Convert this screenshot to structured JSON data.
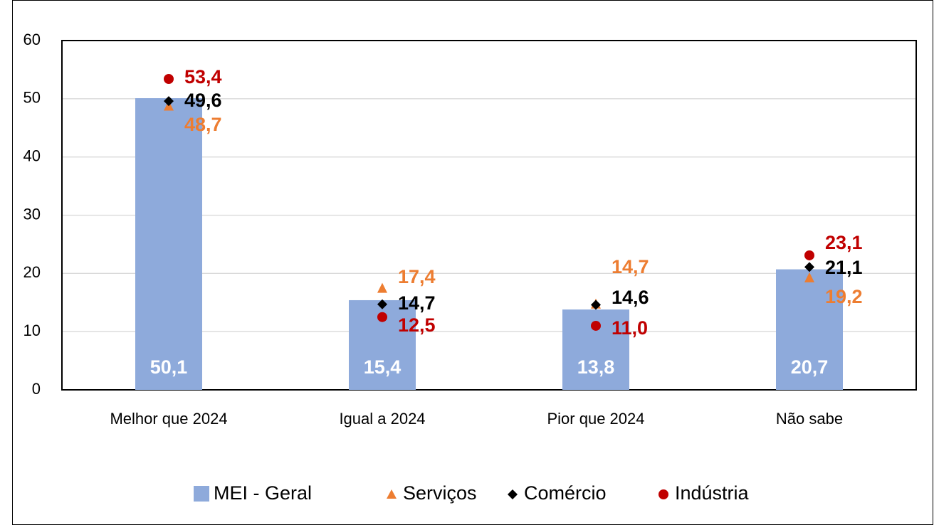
{
  "chart_data": {
    "type": "bar",
    "categories": [
      "Melhor que 2024",
      "Igual a 2024",
      "Pior que 2024",
      "Não sabe"
    ],
    "series": [
      {
        "name": "MEI - Geral",
        "type": "bar",
        "color": "#8eaadb",
        "values": [
          50.1,
          15.4,
          13.8,
          20.7
        ],
        "value_labels": [
          "50,1",
          "15,4",
          "13,8",
          "20,7"
        ],
        "label_color": "#ffffff"
      },
      {
        "name": "Serviços",
        "type": "triangle",
        "color": "#ed7d31",
        "values": [
          48.7,
          17.4,
          14.7,
          19.2
        ],
        "value_labels": [
          "48,7",
          "17,4",
          "14,7",
          "19,2"
        ],
        "label_color": "#ed7d31"
      },
      {
        "name": "Comércio",
        "type": "diamond",
        "color": "#000000",
        "values": [
          49.6,
          14.7,
          14.6,
          21.1
        ],
        "value_labels": [
          "49,6",
          "14,7",
          "14,6",
          "21,1"
        ],
        "label_color": "#000000"
      },
      {
        "name": "Indústria",
        "type": "circle",
        "color": "#c00000",
        "values": [
          53.4,
          12.5,
          11.0,
          23.1
        ],
        "value_labels": [
          "53,4",
          "12,5",
          "11,0",
          "23,1"
        ],
        "label_color": "#c00000"
      }
    ],
    "ylim": [
      0,
      60
    ],
    "yticks": [
      0,
      10,
      20,
      30,
      40,
      50,
      60
    ],
    "grid": true,
    "legend": "bottom"
  }
}
